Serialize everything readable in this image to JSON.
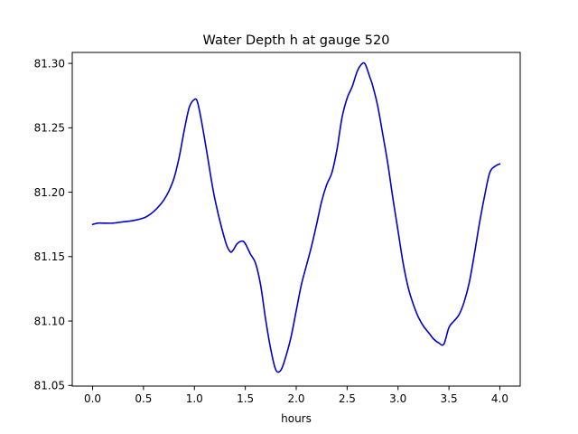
{
  "chart_data": {
    "type": "line",
    "title": "Water Depth h at gauge 520",
    "xlabel": "hours",
    "ylabel": "",
    "xlim": [
      -0.2,
      4.2
    ],
    "ylim": [
      81.0495,
      81.3085
    ],
    "xticks": [
      {
        "value": 0.0,
        "label": "0.0"
      },
      {
        "value": 0.5,
        "label": "0.5"
      },
      {
        "value": 1.0,
        "label": "1.0"
      },
      {
        "value": 1.5,
        "label": "1.5"
      },
      {
        "value": 2.0,
        "label": "2.0"
      },
      {
        "value": 2.5,
        "label": "2.5"
      },
      {
        "value": 3.0,
        "label": "3.0"
      },
      {
        "value": 3.5,
        "label": "3.5"
      },
      {
        "value": 4.0,
        "label": "4.0"
      }
    ],
    "yticks": [
      {
        "value": 81.05,
        "label": "81.05"
      },
      {
        "value": 81.1,
        "label": "81.10"
      },
      {
        "value": 81.15,
        "label": "81.15"
      },
      {
        "value": 81.2,
        "label": "81.20"
      },
      {
        "value": 81.25,
        "label": "81.25"
      },
      {
        "value": 81.3,
        "label": "81.30"
      }
    ],
    "grid": false,
    "legend": "none",
    "series": [
      {
        "color": "#0000cc",
        "x": [
          0.0,
          0.05,
          0.1,
          0.2,
          0.3,
          0.4,
          0.5,
          0.55,
          0.6,
          0.65,
          0.7,
          0.75,
          0.8,
          0.85,
          0.9,
          0.95,
          1.0,
          1.03,
          1.07,
          1.12,
          1.2,
          1.3,
          1.35,
          1.38,
          1.42,
          1.47,
          1.5,
          1.55,
          1.6,
          1.65,
          1.7,
          1.75,
          1.8,
          1.85,
          1.9,
          1.95,
          2.0,
          2.05,
          2.1,
          2.15,
          2.2,
          2.25,
          2.3,
          2.35,
          2.4,
          2.45,
          2.5,
          2.55,
          2.6,
          2.65,
          2.68,
          2.72,
          2.75,
          2.8,
          2.85,
          2.9,
          2.95,
          3.0,
          3.05,
          3.1,
          3.15,
          3.2,
          3.25,
          3.3,
          3.35,
          3.4,
          3.45,
          3.5,
          3.55,
          3.6,
          3.65,
          3.7,
          3.75,
          3.8,
          3.85,
          3.9,
          3.95,
          4.0
        ],
        "y": [
          81.175,
          81.176,
          81.176,
          81.176,
          81.177,
          81.178,
          81.18,
          81.182,
          81.185,
          81.189,
          81.194,
          81.201,
          81.211,
          81.227,
          81.248,
          81.266,
          81.272,
          81.27,
          81.255,
          81.232,
          81.195,
          81.163,
          81.154,
          81.155,
          81.16,
          81.162,
          81.16,
          81.152,
          81.145,
          81.128,
          81.101,
          81.078,
          81.062,
          81.062,
          81.073,
          81.088,
          81.108,
          81.128,
          81.143,
          81.158,
          81.175,
          81.193,
          81.206,
          81.215,
          81.233,
          81.258,
          81.273,
          81.282,
          81.294,
          81.3,
          81.299,
          81.29,
          81.283,
          81.267,
          81.245,
          81.222,
          81.195,
          81.17,
          81.145,
          81.126,
          81.113,
          81.103,
          81.096,
          81.091,
          81.086,
          81.083,
          81.082,
          81.095,
          81.1,
          81.105,
          81.115,
          81.13,
          81.152,
          81.176,
          81.197,
          81.215,
          81.22,
          81.222
        ]
      }
    ]
  }
}
